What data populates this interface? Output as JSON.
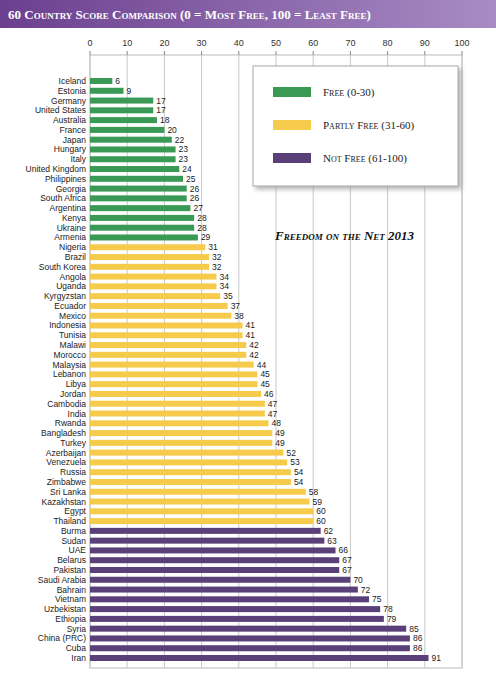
{
  "chart_data": {
    "type": "bar",
    "title": "60 Country Score Comparison (0 = Most Free, 100 = Least Free)",
    "annotation": "Freedom on the Net 2013",
    "orientation": "horizontal",
    "grid": true,
    "data_labels": true,
    "legend": "upper right",
    "xlim": [
      0,
      100
    ],
    "xticks": [
      0,
      10,
      20,
      30,
      40,
      50,
      60,
      70,
      80,
      90,
      100
    ],
    "categories": [
      "Iceland",
      "Estonia",
      "Germany",
      "United States",
      "Australia",
      "France",
      "Japan",
      "Hungary",
      "Italy",
      "United Kingdom",
      "Philippines",
      "Georgia",
      "South Africa",
      "Argentina",
      "Kenya",
      "Ukraine",
      "Armenia",
      "Nigeria",
      "Brazil",
      "South Korea",
      "Angola",
      "Uganda",
      "Kyrgyzstan",
      "Ecuador",
      "Mexico",
      "Indonesia",
      "Tunisia",
      "Malawi",
      "Morocco",
      "Malaysia",
      "Lebanon",
      "Libya",
      "Jordan",
      "Cambodia",
      "India",
      "Rwanda",
      "Bangladesh",
      "Turkey",
      "Azerbaijan",
      "Venezuela",
      "Russia",
      "Zimbabwe",
      "Sri Lanka",
      "Kazakhstan",
      "Egypt",
      "Thailand",
      "Burma",
      "Sudan",
      "UAE",
      "Belarus",
      "Pakistan",
      "Saudi Arabia",
      "Bahrain",
      "Vietnam",
      "Uzbekistan",
      "Ethiopia",
      "Syria",
      "China (PRC)",
      "Cuba",
      "Iran"
    ],
    "series": [
      {
        "name": "Free (0-30)",
        "color": "#3a9a55",
        "values": [
          6,
          9,
          17,
          17,
          18,
          20,
          22,
          23,
          23,
          24,
          25,
          26,
          26,
          27,
          28,
          28,
          29,
          null,
          null,
          null,
          null,
          null,
          null,
          null,
          null,
          null,
          null,
          null,
          null,
          null,
          null,
          null,
          null,
          null,
          null,
          null,
          null,
          null,
          null,
          null,
          null,
          null,
          null,
          null,
          null,
          null,
          null,
          null,
          null,
          null,
          null,
          null,
          null,
          null,
          null,
          null,
          null,
          null,
          null,
          null
        ]
      },
      {
        "name": "Partly Free (31-60)",
        "color": "#f6cb4c",
        "values": [
          null,
          null,
          null,
          null,
          null,
          null,
          null,
          null,
          null,
          null,
          null,
          null,
          null,
          null,
          null,
          null,
          null,
          31,
          32,
          32,
          34,
          34,
          35,
          37,
          38,
          41,
          41,
          42,
          42,
          44,
          45,
          45,
          46,
          47,
          47,
          48,
          49,
          49,
          52,
          53,
          54,
          54,
          58,
          59,
          60,
          60,
          null,
          null,
          null,
          null,
          null,
          null,
          null,
          null,
          null,
          null,
          null,
          null,
          null,
          null
        ]
      },
      {
        "name": "Not Free (61-100)",
        "color": "#5a4079",
        "values": [
          null,
          null,
          null,
          null,
          null,
          null,
          null,
          null,
          null,
          null,
          null,
          null,
          null,
          null,
          null,
          null,
          null,
          null,
          null,
          null,
          null,
          null,
          null,
          null,
          null,
          null,
          null,
          null,
          null,
          null,
          null,
          null,
          null,
          null,
          null,
          null,
          null,
          null,
          null,
          null,
          null,
          null,
          null,
          null,
          null,
          null,
          62,
          63,
          66,
          67,
          67,
          70,
          72,
          75,
          78,
          79,
          85,
          86,
          86,
          91
        ]
      }
    ]
  }
}
